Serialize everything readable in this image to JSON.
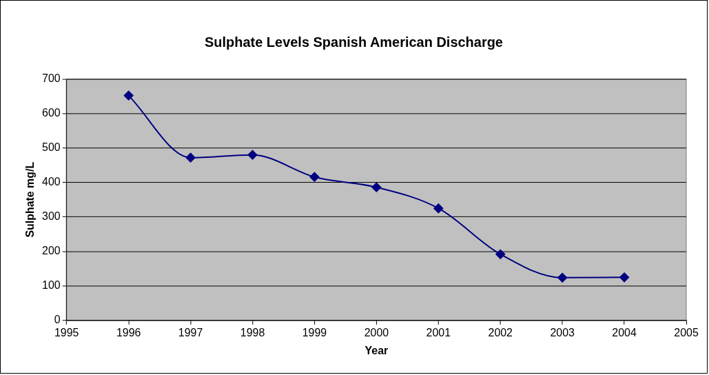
{
  "chart_data": {
    "type": "line",
    "title": "Sulphate Levels Spanish American Discharge",
    "xlabel": "Year",
    "ylabel": "Sulphate mg/L",
    "x": [
      1996,
      1997,
      1998,
      1999,
      2000,
      2001,
      2002,
      2003,
      2004
    ],
    "series": [
      {
        "color": "#000080",
        "values": [
          652,
          472,
          480,
          416,
          386,
          325,
          192,
          124,
          125
        ]
      }
    ],
    "xlim": [
      1995,
      2005
    ],
    "xticks": [
      1995,
      1996,
      1997,
      1998,
      1999,
      2000,
      2001,
      2002,
      2003,
      2004,
      2005
    ],
    "ylim": [
      0,
      700
    ],
    "yticks": [
      0,
      100,
      200,
      300,
      400,
      500,
      600,
      700
    ],
    "grid": "y",
    "legend": false,
    "marker": "diamond",
    "line_style": "solid"
  }
}
